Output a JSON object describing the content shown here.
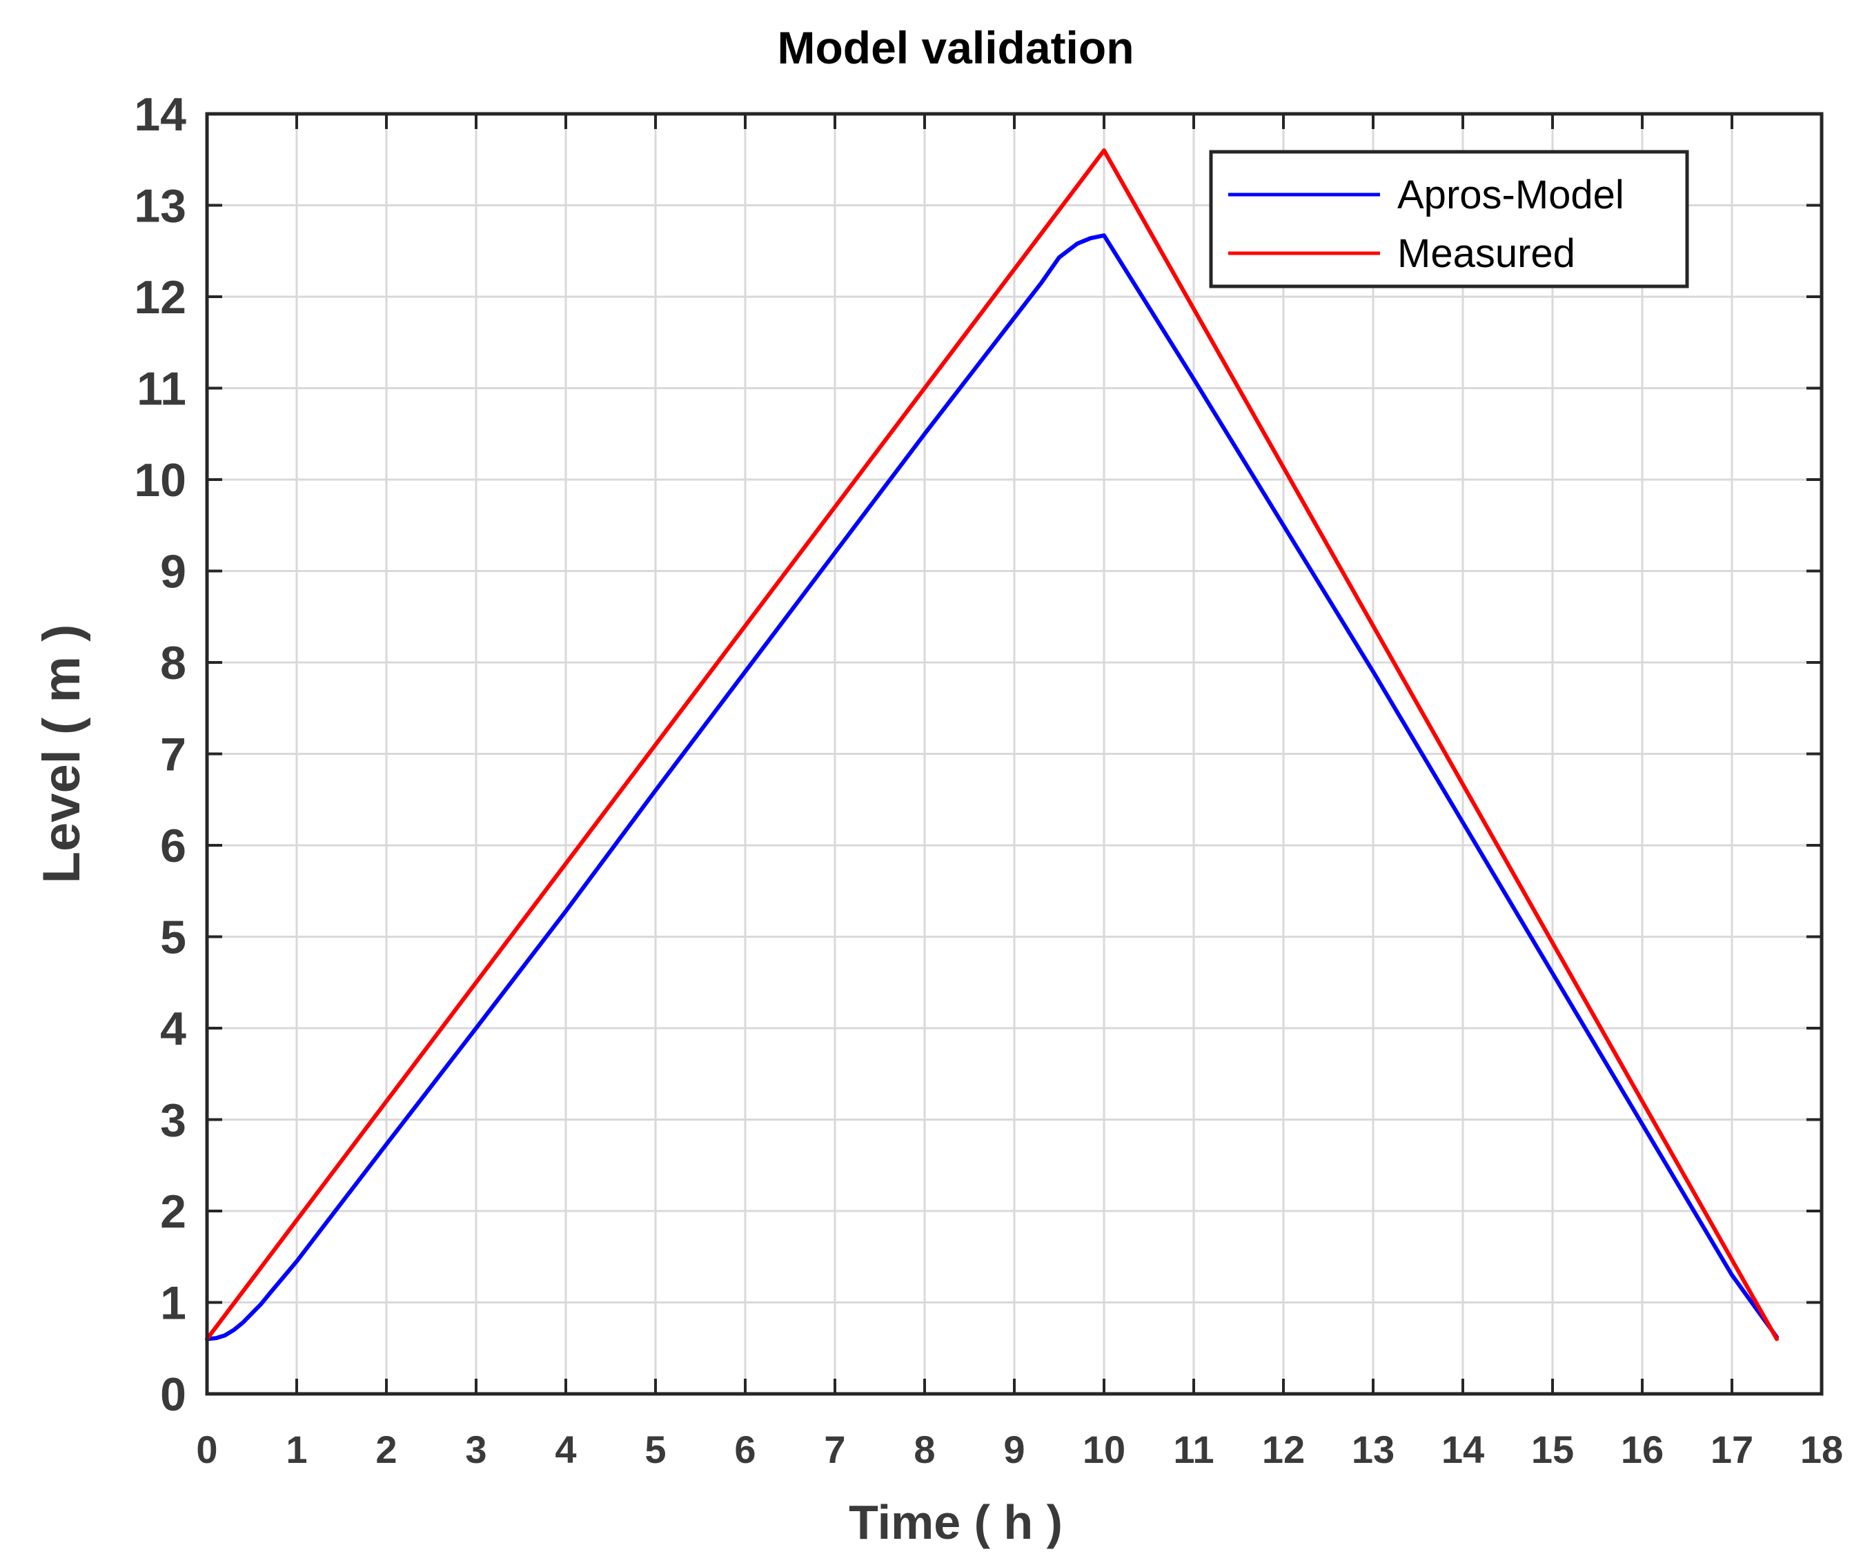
{
  "chart_data": {
    "type": "line",
    "title": "Model validation",
    "xlabel": "Time ( h )",
    "ylabel": "Level ( m )",
    "xlim": [
      0,
      18
    ],
    "ylim": [
      0,
      14
    ],
    "xticks": [
      "0",
      "1",
      "2",
      "3",
      "4",
      "5",
      "6",
      "7",
      "8",
      "9",
      "10",
      "11",
      "12",
      "13",
      "14",
      "15",
      "16",
      "17",
      "18"
    ],
    "yticks": [
      "0",
      "1",
      "2",
      "3",
      "4",
      "5",
      "6",
      "7",
      "8",
      "9",
      "10",
      "11",
      "12",
      "13",
      "14"
    ],
    "grid": true,
    "legend_position": "top-right",
    "series": [
      {
        "name": "Apros-Model",
        "color": "#0000ff",
        "x": [
          0,
          0.1,
          0.2,
          0.3,
          0.4,
          0.5,
          0.6,
          0.7,
          1.0,
          2.0,
          3.0,
          4.0,
          5.0,
          6.0,
          7.0,
          8.0,
          9.0,
          9.3,
          9.5,
          9.7,
          9.85,
          10.0,
          11.0,
          12.0,
          13.0,
          14.0,
          15.0,
          16.0,
          17.0,
          17.5
        ],
        "y": [
          0.6,
          0.61,
          0.64,
          0.7,
          0.78,
          0.88,
          0.98,
          1.1,
          1.45,
          2.73,
          4.0,
          5.28,
          6.6,
          7.9,
          9.2,
          10.5,
          11.77,
          12.15,
          12.43,
          12.58,
          12.64,
          12.67,
          11.1,
          9.5,
          7.9,
          6.25,
          4.6,
          2.95,
          1.3,
          0.62
        ]
      },
      {
        "name": "Measured",
        "color": "#ff0000",
        "x": [
          0,
          10.0,
          17.5
        ],
        "y": [
          0.6,
          13.6,
          0.6
        ]
      }
    ]
  }
}
